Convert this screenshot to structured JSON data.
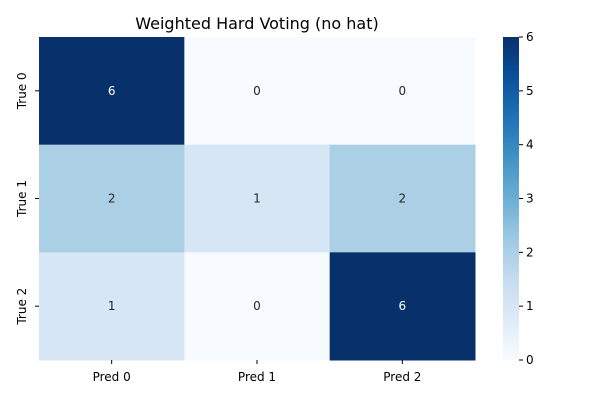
{
  "chart_data": {
    "type": "heatmap",
    "title": "Weighted Hard Voting (no hat)",
    "xlabel": "",
    "ylabel": "",
    "x_categories": [
      "Pred 0",
      "Pred 1",
      "Pred 2"
    ],
    "y_categories": [
      "True 0",
      "True 1",
      "True 2"
    ],
    "values": [
      [
        6,
        0,
        0
      ],
      [
        2,
        1,
        2
      ],
      [
        1,
        0,
        6
      ]
    ],
    "colormap": "Blues",
    "vmin": 0,
    "vmax": 6,
    "colorbar_ticks": [
      0,
      1,
      2,
      3,
      4,
      5,
      6
    ],
    "annotations": true,
    "grid": false
  }
}
